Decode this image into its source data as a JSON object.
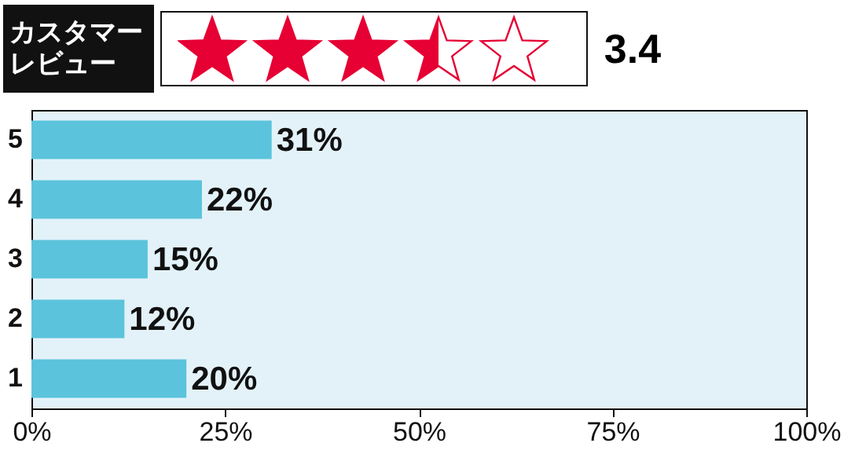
{
  "chart_data": {
    "type": "bar",
    "title": "カスタマーレビュー",
    "annotations": [
      "3.4"
    ],
    "orientation": "horizontal",
    "categories": [
      "5",
      "4",
      "3",
      "2",
      "1"
    ],
    "values": [
      31,
      22,
      15,
      12,
      20
    ],
    "value_labels": [
      "31%",
      "22%",
      "15%",
      "12%",
      "20%"
    ],
    "color": "#5bc3dc",
    "xlim": [
      0,
      100
    ],
    "xticks": [
      {
        "value": 0,
        "label": "0%"
      },
      {
        "value": 25,
        "label": "25%"
      },
      {
        "value": 50,
        "label": "50%"
      },
      {
        "value": 75,
        "label": "75%"
      },
      {
        "value": 100,
        "label": "100%"
      }
    ]
  }
}
